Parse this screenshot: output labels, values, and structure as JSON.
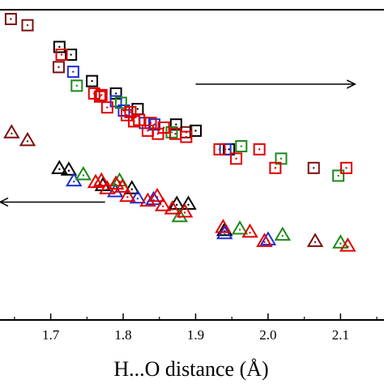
{
  "chart_data": {
    "type": "scatter",
    "title": "",
    "xlabel": "H...O distance (Å)",
    "ylabel": "",
    "xlim": [
      1.63,
      2.16
    ],
    "ylim": [
      0,
      100
    ],
    "x_ticks": [
      "1.7",
      "1.8",
      "1.9",
      "2.0",
      "2.1"
    ],
    "x_tick_values": [
      1.7,
      1.8,
      1.9,
      2.0,
      2.1
    ],
    "grid": false,
    "legend": "none",
    "colors": {
      "darkred": "#7a1010",
      "black": "#000000",
      "blue": "#1f2fd6",
      "green": "#1a8a1a",
      "red": "#e00000"
    },
    "arrows": [
      {
        "from": [
          1.9,
          76
        ],
        "to": [
          2.12,
          76
        ]
      },
      {
        "from": [
          1.775,
          38
        ],
        "to": [
          1.63,
          38
        ]
      }
    ],
    "series": [
      {
        "marker": "square",
        "color": "darkred",
        "x": [
          1.645,
          1.668,
          1.711,
          1.887,
          2.063
        ],
        "y": [
          97,
          95,
          81.5,
          60.5,
          49
        ]
      },
      {
        "marker": "square",
        "color": "black",
        "x": [
          1.712,
          1.728,
          1.757,
          1.79,
          1.82,
          1.873,
          1.9,
          1.946
        ],
        "y": [
          88,
          85.5,
          77,
          73,
          68,
          63,
          61,
          55
        ]
      },
      {
        "marker": "square",
        "color": "blue",
        "x": [
          1.731,
          1.79,
          1.801,
          1.83,
          1.843,
          1.941
        ],
        "y": [
          80,
          70.5,
          67.5,
          63.5,
          63,
          55
        ]
      },
      {
        "marker": "square",
        "color": "green",
        "x": [
          1.736,
          1.797,
          1.867,
          1.963,
          2.018,
          2.097
        ],
        "y": [
          75.5,
          70,
          60.5,
          56,
          52,
          46.5
        ]
      },
      {
        "marker": "square",
        "color": "red",
        "x": [
          1.715,
          1.76,
          1.768,
          1.77,
          1.778,
          1.805,
          1.81,
          1.815,
          1.822,
          1.834,
          1.838,
          1.848,
          1.856,
          1.872,
          1.887,
          1.933,
          1.956,
          1.988,
          2.01,
          2.108
        ],
        "y": [
          85.5,
          73,
          72,
          72.5,
          68.5,
          66,
          67,
          64,
          64.5,
          61,
          63.5,
          60,
          62,
          60,
          59,
          55,
          52,
          55,
          49,
          49
        ]
      },
      {
        "marker": "triangle",
        "color": "darkred",
        "x": [
          1.646,
          1.668,
          2.065
        ],
        "y": [
          60.5,
          58,
          25.5
        ]
      },
      {
        "marker": "triangle",
        "color": "black",
        "x": [
          1.712,
          1.725,
          1.772,
          1.812,
          1.874,
          1.89,
          1.94
        ],
        "y": [
          49,
          48.5,
          43.5,
          42.5,
          37.5,
          37.5,
          29
        ]
      },
      {
        "marker": "triangle",
        "color": "blue",
        "x": [
          1.732,
          1.789,
          1.82,
          1.842,
          1.94,
          2.0
        ],
        "y": [
          45,
          41.5,
          39.5,
          39,
          28,
          26
        ]
      },
      {
        "marker": "triangle",
        "color": "green",
        "x": [
          1.745,
          1.795,
          1.878,
          1.961,
          2.02,
          2.1
        ],
        "y": [
          47,
          45,
          33.5,
          29.5,
          27.5,
          25
        ]
      },
      {
        "marker": "triangle",
        "color": "red",
        "x": [
          1.762,
          1.77,
          1.778,
          1.79,
          1.799,
          1.806,
          1.834,
          1.847,
          1.855,
          1.868,
          1.885,
          1.938,
          1.975,
          1.995,
          2.11
        ],
        "y": [
          44.5,
          45,
          42.5,
          44,
          43,
          40,
          38.5,
          40,
          37,
          36,
          35,
          30,
          28.5,
          25.5,
          24
        ]
      }
    ]
  }
}
